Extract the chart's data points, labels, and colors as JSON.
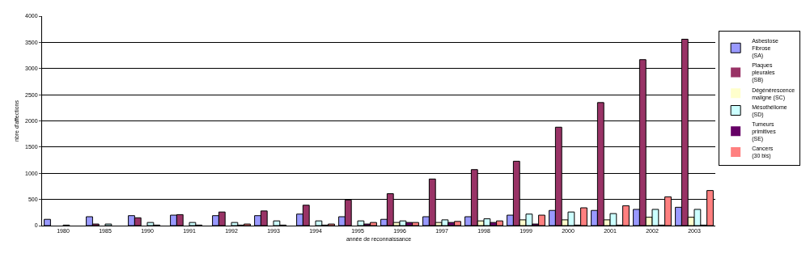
{
  "chart_data": {
    "type": "bar",
    "xlabel": "année de reconnaissance",
    "ylabel": "nbre d'affections",
    "categories": [
      "1980",
      "1985",
      "1990",
      "1991",
      "1992",
      "1993",
      "1994",
      "1995",
      "1996",
      "1997",
      "1998",
      "1999",
      "2000",
      "2001",
      "2002",
      "2003"
    ],
    "series": [
      {
        "name": "Asbestose\nFibrose\n(SA)",
        "color": "#9999ff",
        "values": [
          120,
          170,
          190,
          200,
          190,
          190,
          220,
          170,
          120,
          170,
          170,
          200,
          290,
          290,
          310,
          350
        ]
      },
      {
        "name": "Plaques\npleurales\n(SB)",
        "color": "#993366",
        "values": [
          0,
          30,
          150,
          210,
          260,
          280,
          390,
          490,
          610,
          890,
          1070,
          1230,
          1880,
          2350,
          3170,
          3560
        ]
      },
      {
        "name": "Dégénérescence\nmaligne (SC)",
        "color": "#ffffcc",
        "values": [
          0,
          0,
          0,
          0,
          0,
          0,
          0,
          0,
          60,
          60,
          90,
          110,
          110,
          110,
          160,
          160
        ]
      },
      {
        "name": "Mésothéliome\n(SD)",
        "color": "#ccffff",
        "values": [
          10,
          30,
          60,
          60,
          60,
          90,
          90,
          90,
          90,
          110,
          130,
          220,
          260,
          230,
          310,
          310
        ]
      },
      {
        "name": "Tumeurs\nprimitives\n(SE)",
        "color": "#660066",
        "values": [
          0,
          0,
          10,
          10,
          10,
          10,
          10,
          30,
          60,
          60,
          60,
          30,
          10,
          10,
          10,
          10
        ]
      },
      {
        "name": "Cancers\n(30 bis)",
        "color": "#ff8080",
        "values": [
          null,
          0,
          null,
          null,
          30,
          0,
          30,
          60,
          60,
          80,
          90,
          200,
          340,
          380,
          550,
          670
        ]
      }
    ],
    "ylim": [
      0,
      4000
    ],
    "yticks": [
      0,
      500,
      1000,
      1500,
      2000,
      2500,
      3000,
      3500,
      4000
    ],
    "grid": "y",
    "legend": "right"
  }
}
